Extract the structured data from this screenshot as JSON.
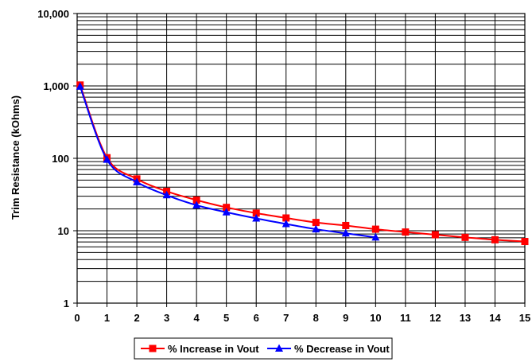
{
  "chart_data": {
    "type": "line",
    "title": "",
    "xlabel": "",
    "ylabel": "Trim Resistance (kOhms)",
    "y_scale": "log",
    "ylim": [
      1,
      10000
    ],
    "xlim": [
      0,
      15
    ],
    "x_ticks": [
      "0",
      "1",
      "2",
      "3",
      "4",
      "5",
      "6",
      "7",
      "8",
      "9",
      "10",
      "11",
      "12",
      "13",
      "14",
      "15"
    ],
    "y_ticks": [
      "1",
      "10",
      "100",
      "1,000",
      "10,000"
    ],
    "grid": true,
    "legend_position": "bottom",
    "series": [
      {
        "name": "% Increase in Vout",
        "color": "#ff0000",
        "marker": "square",
        "x": [
          0.1,
          1,
          2,
          3,
          4,
          5,
          6,
          7,
          8,
          9,
          10,
          11,
          12,
          13,
          14,
          15
        ],
        "y": [
          1030,
          102,
          52,
          35,
          26.5,
          21,
          17.5,
          15,
          13,
          11.8,
          10.5,
          9.6,
          8.8,
          8.1,
          7.5,
          7.1
        ]
      },
      {
        "name": "% Decrease in Vout",
        "color": "#0000ff",
        "marker": "triangle",
        "x": [
          0.1,
          1,
          2,
          3,
          4,
          5,
          6,
          7,
          8,
          9,
          10
        ],
        "y": [
          980,
          96,
          47,
          31,
          22.5,
          18,
          14.8,
          12.4,
          10.5,
          9.2,
          8.1
        ]
      }
    ]
  }
}
